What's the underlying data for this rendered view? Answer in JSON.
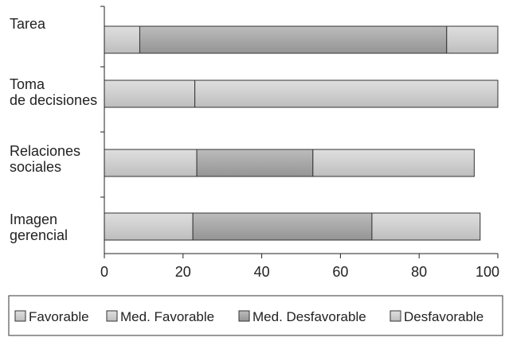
{
  "chart_data": {
    "type": "bar",
    "orientation": "horizontal",
    "stacked": true,
    "categories": [
      [
        "Tarea"
      ],
      [
        "Toma",
        "de decisiones"
      ],
      [
        "Relaciones",
        "sociales"
      ],
      [
        "Imagen",
        "gerencial"
      ]
    ],
    "series": [
      {
        "name": "Favorable",
        "values": [
          9,
          0,
          0,
          0
        ],
        "color": "#c8c8c8"
      },
      {
        "name": "Med. Favorable",
        "values": [
          0,
          23,
          23.5,
          22.5
        ],
        "color": "#c8c8c8"
      },
      {
        "name": "Med. Desfavorable",
        "values": [
          78,
          0,
          29.5,
          45.5
        ],
        "color": "#a9a9a9"
      },
      {
        "name": "Desfavorable",
        "values": [
          13,
          77,
          41,
          27.5
        ],
        "color": "#c8c8c8"
      }
    ],
    "xlim": [
      0,
      100
    ],
    "xticks": [
      "0",
      "20",
      "40",
      "60",
      "80",
      "100"
    ],
    "title": "",
    "xlabel": "",
    "ylabel": "",
    "grid": false,
    "legend_position": "bottom"
  }
}
